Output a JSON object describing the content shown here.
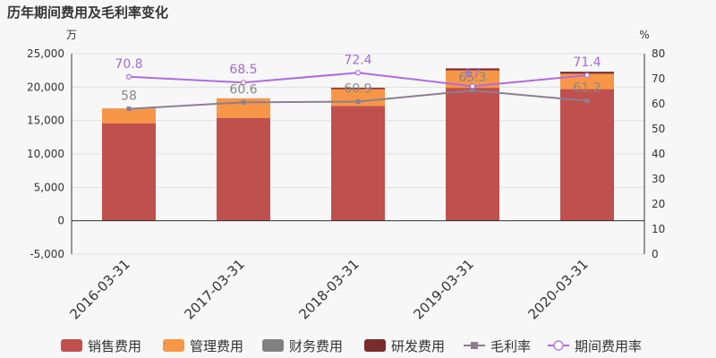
{
  "title": "历年期间费用及毛利率变化",
  "chart_data": {
    "type": "bar",
    "stacked": true,
    "title": "历年期间费用及毛利率变化",
    "left_unit": "万",
    "right_unit": "%",
    "categories": [
      "2016-03-31",
      "2017-03-31",
      "2018-03-31",
      "2019-03-31",
      "2020-03-31"
    ],
    "ylim": [
      -5000,
      25000
    ],
    "yticks": [
      "-5,000",
      "0",
      "5,000",
      "10,000",
      "15,000",
      "20,000",
      "25,000"
    ],
    "yticks_values": [
      -5000,
      0,
      5000,
      10000,
      15000,
      20000,
      25000
    ],
    "y2lim": [
      0,
      80
    ],
    "y2ticks": [
      "0",
      "10",
      "20",
      "30",
      "40",
      "50",
      "60",
      "70",
      "80"
    ],
    "series": [
      {
        "name": "销售费用",
        "kind": "bar",
        "color": "#c0504d",
        "values": [
          14600,
          15400,
          17200,
          19900,
          19700
        ]
      },
      {
        "name": "管理费用",
        "kind": "bar",
        "color": "#f79646",
        "values": [
          2200,
          2900,
          2500,
          2600,
          2300
        ]
      },
      {
        "name": "财务费用",
        "kind": "bar",
        "color": "#808080",
        "values": [
          20,
          20,
          0,
          0,
          0
        ]
      },
      {
        "name": "研发费用",
        "kind": "bar",
        "color": "#7b2c2c",
        "values": [
          0,
          0,
          200,
          300,
          300
        ]
      },
      {
        "name": "毛利率",
        "kind": "line",
        "axis": "right",
        "color": "#8b7f8f",
        "values": [
          58,
          60.6,
          60.9,
          65.3,
          61.2
        ],
        "labels": [
          "58",
          "60.6",
          "60.9",
          "65.3",
          "61.2"
        ]
      },
      {
        "name": "期间费用率",
        "kind": "line",
        "axis": "right",
        "color": "#b06be0",
        "values": [
          70.8,
          68.5,
          72.4,
          67,
          71.4
        ],
        "labels": [
          "70.8",
          "68.5",
          "72.4",
          "67",
          "71.4"
        ]
      }
    ],
    "legend_position": "bottom",
    "grid": true
  }
}
